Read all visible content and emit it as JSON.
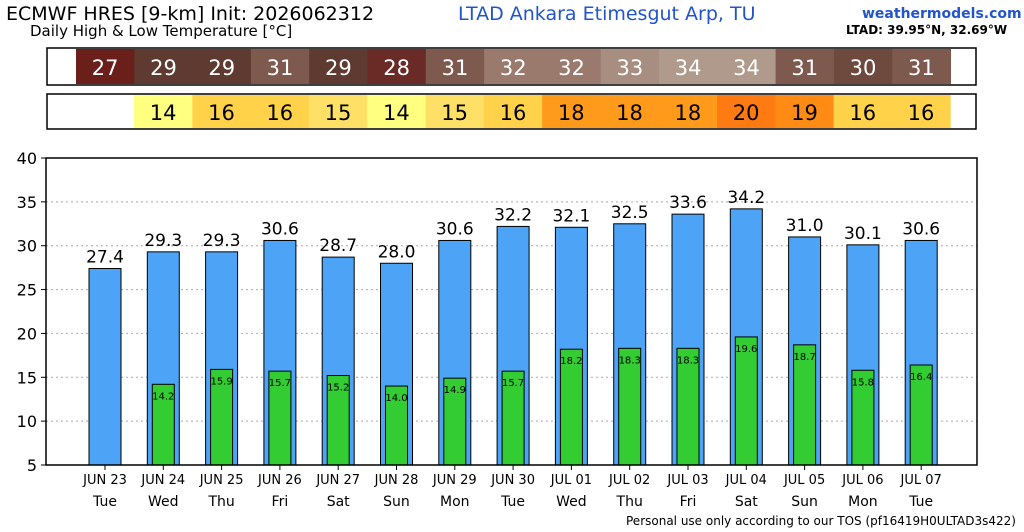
{
  "header": {
    "title_line1": "ECMWF HRES [9-km] Init: 2026062312",
    "title_line2": "Daily High & Low Temperature [°C]",
    "station": "LTAD Ankara Etimesgut Arp,   TU",
    "brand": "weathermodels.com",
    "coords": "LTAD: 39.95°N, 32.69°W"
  },
  "footer": "Personal use only according to our TOS (pf16419H0ULTAD3s422)",
  "strips": {
    "high_rounded": [
      "27",
      "29",
      "29",
      "31",
      "29",
      "28",
      "31",
      "32",
      "32",
      "33",
      "34",
      "34",
      "31",
      "30",
      "31"
    ],
    "high_colors": [
      "#6a1f1a",
      "#5e3a30",
      "#5e3a30",
      "#7e5a4e",
      "#5e3a30",
      "#6a2a26",
      "#7e5a4e",
      "#9a7a6c",
      "#9a7a6c",
      "#a88e80",
      "#b09a8c",
      "#b09a8c",
      "#7e5a4e",
      "#6e4a3e",
      "#7e5a4e"
    ],
    "low_rounded": [
      "14",
      "16",
      "16",
      "15",
      "14",
      "15",
      "16",
      "18",
      "18",
      "18",
      "20",
      "19",
      "16",
      "16"
    ],
    "low_colors": [
      "#ffff80",
      "#ffd24a",
      "#ffd24a",
      "#ffe066",
      "#ffff80",
      "#ffe066",
      "#ffd24a",
      "#ff9a1a",
      "#ff9a1a",
      "#ff9a1a",
      "#ff7a10",
      "#ff8a14",
      "#ffd24a",
      "#ffd24a"
    ]
  },
  "chart_data": {
    "type": "bar",
    "categories": [
      "JUN 23",
      "JUN 24",
      "JUN 25",
      "JUN 26",
      "JUN 27",
      "JUN 28",
      "JUN 29",
      "JUN 30",
      "JUL 01",
      "JUL 02",
      "JUL 03",
      "JUL 04",
      "JUL 05",
      "JUL 06",
      "JUL 07"
    ],
    "weekdays": [
      "Tue",
      "Wed",
      "Thu",
      "Fri",
      "Sat",
      "Sun",
      "Mon",
      "Tue",
      "Wed",
      "Thu",
      "Fri",
      "Sat",
      "Sun",
      "Mon",
      "Tue"
    ],
    "series": [
      {
        "values": [
          27.4,
          29.3,
          29.3,
          30.6,
          28.7,
          28.0,
          30.6,
          32.2,
          32.1,
          32.5,
          33.6,
          34.2,
          31.0,
          30.1,
          30.6
        ],
        "color": "#4da3f5"
      },
      {
        "values": [
          null,
          14.2,
          15.9,
          15.7,
          15.2,
          14.0,
          14.9,
          15.7,
          18.2,
          18.3,
          18.3,
          19.6,
          18.7,
          15.8,
          16.4
        ],
        "color": "#33cc33"
      }
    ],
    "high_labels": [
      "27.4",
      "29.3",
      "29.3",
      "30.6",
      "28.7",
      "28.0",
      "30.6",
      "32.2",
      "32.1",
      "32.5",
      "33.6",
      "34.2",
      "31.0",
      "30.1",
      "30.6"
    ],
    "low_labels": [
      "",
      "14.2",
      "15.9",
      "15.7",
      "15.2",
      "14.0",
      "14.9",
      "15.7",
      "18.2",
      "18.3",
      "18.3",
      "19.6",
      "18.7",
      "15.8",
      "16.4"
    ],
    "yticks": [
      "40",
      "35",
      "30",
      "25",
      "20",
      "15",
      "10",
      "5"
    ],
    "ylim": [
      5,
      40
    ],
    "grid": true
  }
}
